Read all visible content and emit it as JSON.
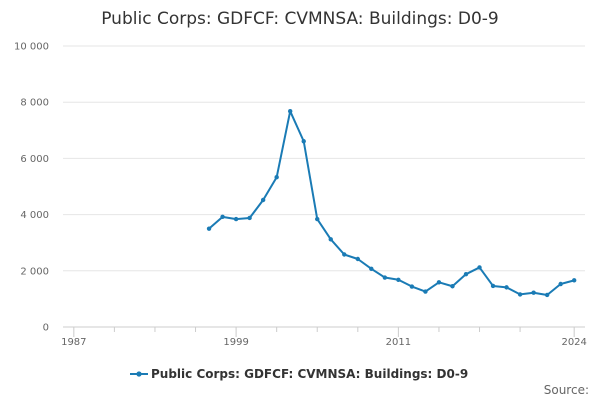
{
  "chart_data": {
    "type": "line",
    "title": "Public Corps: GDFCF: CVMNSA: Buildings: D0-9",
    "xlabel": "",
    "ylabel": "",
    "xlim": [
      1986.2,
      2024.8
    ],
    "ylim": [
      0,
      10000
    ],
    "x_ticks": [
      {
        "value": 1987,
        "label": "1987"
      },
      {
        "value": 1999,
        "label": "1999"
      },
      {
        "value": 2011,
        "label": "2011"
      },
      {
        "value": 2024,
        "label": "2024"
      }
    ],
    "x_minor_ticks": [
      1990,
      1993,
      1996,
      2002,
      2005,
      2008,
      2014,
      2017,
      2020
    ],
    "y_ticks": [
      {
        "value": 0,
        "label": "0"
      },
      {
        "value": 2000,
        "label": "2 000"
      },
      {
        "value": 4000,
        "label": "4 000"
      },
      {
        "value": 6000,
        "label": "6 000"
      },
      {
        "value": 8000,
        "label": "8 000"
      },
      {
        "value": 10000,
        "label": "10 000"
      }
    ],
    "grid": true,
    "legend_position": "bottom",
    "series": [
      {
        "name": "Public Corps: GDFCF: CVMNSA: Buildings: D0-9",
        "color": "#1a7bb5",
        "x": [
          1997,
          1998,
          1999,
          2000,
          2001,
          2002,
          2003,
          2004,
          2005,
          2006,
          2007,
          2008,
          2009,
          2010,
          2011,
          2012,
          2013,
          2014,
          2015,
          2016,
          2017,
          2018,
          2019,
          2020,
          2021,
          2022,
          2023,
          2024
        ],
        "y": [
          3500,
          3920,
          3840,
          3880,
          4520,
          5330,
          7680,
          6610,
          3840,
          3120,
          2580,
          2420,
          2070,
          1760,
          1680,
          1440,
          1260,
          1590,
          1450,
          1880,
          2120,
          1460,
          1410,
          1160,
          1220,
          1140,
          1530,
          1660
        ]
      }
    ]
  },
  "source_label": "Source:"
}
